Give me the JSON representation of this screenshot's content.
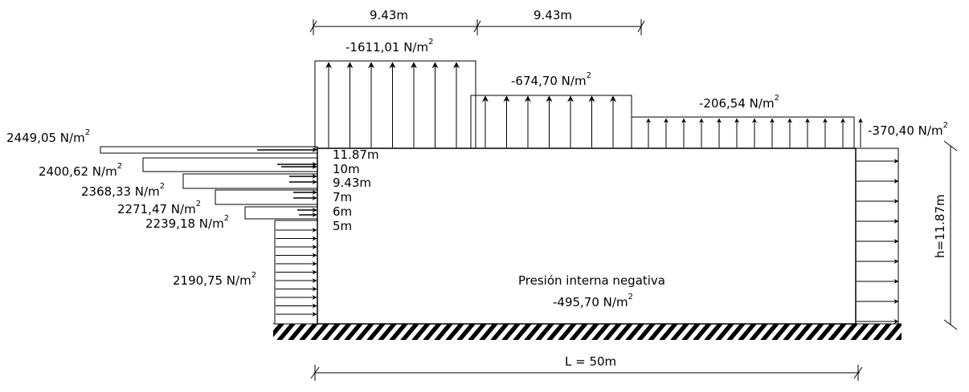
{
  "dimensions": {
    "top_span_1": "9.43m",
    "top_span_2": "9.43m",
    "length": "L = 50m",
    "height": "h=11.87m"
  },
  "roof_loads": [
    {
      "value": "-1611,01 N/m",
      "exp": "2",
      "arrows": 7
    },
    {
      "value": "-674,70 N/m",
      "exp": "2",
      "arrows": 7
    },
    {
      "value": "-206,54 N/m",
      "exp": "2",
      "arrows": 13
    }
  ],
  "leeward_load": {
    "value": "-370,40 N/m",
    "exp": "2",
    "arrows": 9
  },
  "windward_loads": [
    {
      "value": "2449,05 N/m",
      "exp": "2"
    },
    {
      "value": "2400,62 N/m",
      "exp": "2"
    },
    {
      "value": "2368,33 N/m",
      "exp": "2"
    },
    {
      "value": "2271,47 N/m",
      "exp": "2"
    },
    {
      "value": "2239,18 N/m",
      "exp": "2"
    },
    {
      "value": "2190,75 N/m",
      "exp": "2"
    }
  ],
  "height_levels": [
    "11.87m",
    "10m",
    "9.43m",
    "7m",
    "6m",
    "5m"
  ],
  "internal": {
    "title": "Presión interna negativa",
    "value": "-495,70 N/m",
    "exp": "2"
  }
}
